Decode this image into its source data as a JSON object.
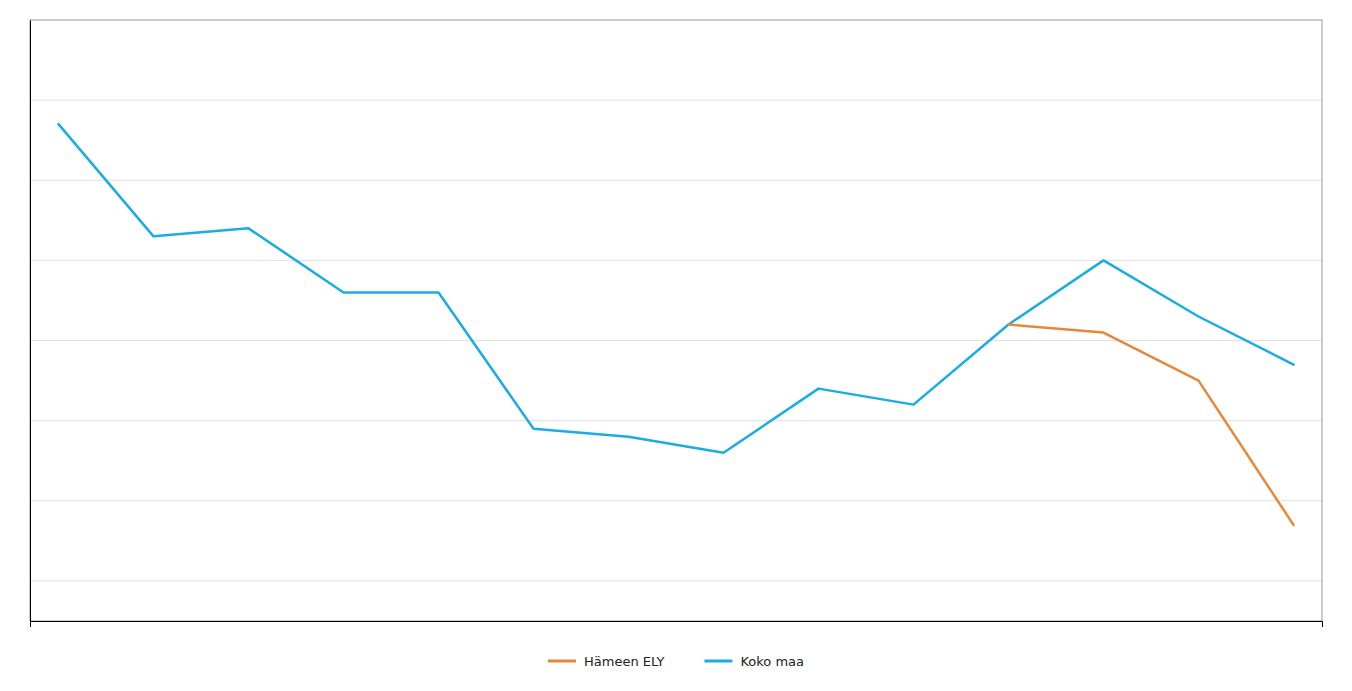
{
  "chart_data": {
    "type": "line",
    "series": [
      {
        "name": "Koko maa",
        "color": "#1aace3",
        "x": [
          0,
          1,
          2,
          3,
          4,
          5,
          6,
          7,
          8,
          9,
          10,
          11,
          12,
          13
        ],
        "values": [
          92,
          78,
          79,
          71,
          71,
          54,
          53,
          51,
          59,
          57,
          67,
          75,
          68,
          62
        ]
      },
      {
        "name": "Hämeen ELY",
        "color": "#e8873a",
        "x": [
          10,
          11,
          12,
          13
        ],
        "values": [
          67,
          66,
          60,
          42
        ]
      }
    ],
    "xlim": [
      -0.3,
      13.3
    ],
    "xticks": [],
    "ylim": [
      30,
      105
    ],
    "yticks": [
      35,
      45,
      55,
      65,
      75,
      85,
      95
    ],
    "grid": true,
    "legend": "bottom",
    "tick_labels": false
  }
}
